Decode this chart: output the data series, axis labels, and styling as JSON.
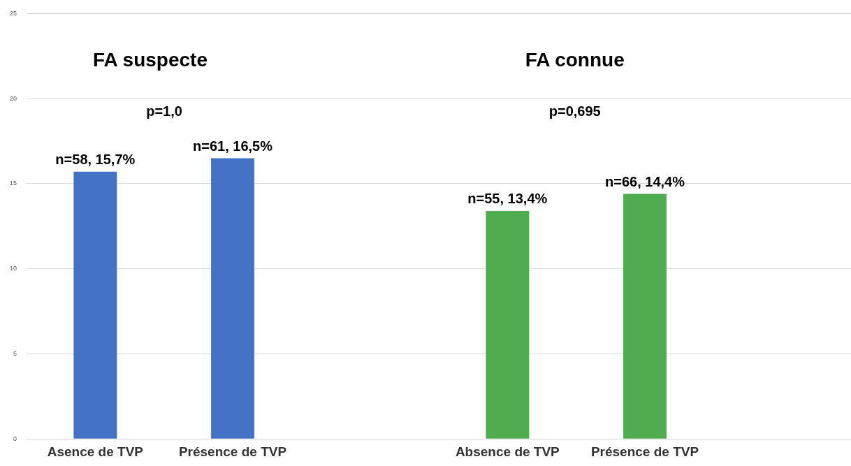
{
  "chart_data": {
    "type": "bar",
    "categories": [
      "Asence de TVP",
      "Présence de TVP",
      null,
      "Absence de TVP",
      "Présence de TVP",
      null
    ],
    "values": [
      15.7,
      16.5,
      null,
      13.4,
      14.4,
      null
    ],
    "colors": [
      "#4472c4",
      "#4472c4",
      "#4472c4",
      "#4fad50",
      "#4fad50",
      "#4fad50"
    ],
    "value_labels": [
      "n=58, 15,7%",
      "n=61, 16,5%",
      null,
      "n=55, 13,4%",
      "n=66, 14,4%",
      null
    ],
    "ylim": [
      0,
      25
    ],
    "yticks": [
      0,
      5,
      10,
      15,
      20,
      25
    ],
    "grid": "y",
    "legend": false,
    "annotations": [
      "FA suspecte",
      "FA connue",
      "p=1,0",
      "p=0,695"
    ]
  }
}
